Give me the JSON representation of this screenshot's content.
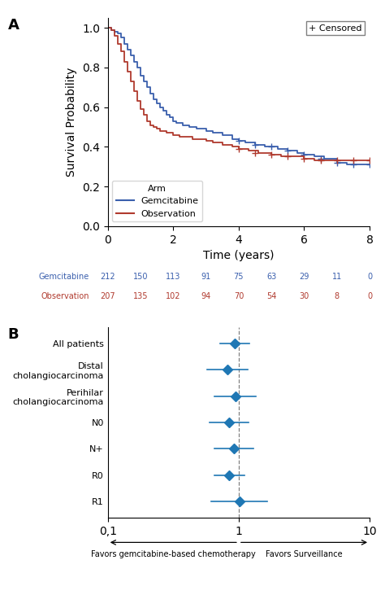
{
  "chart_data": [
    {
      "type": "step",
      "title": "A",
      "xlabel": "Time (years)",
      "ylabel": "Survival Probability",
      "xlim": [
        0,
        8
      ],
      "ylim": [
        0.0,
        1.05
      ],
      "xticks": [
        0,
        2,
        4,
        6,
        8
      ],
      "yticks": [
        {
          "value": 0.0,
          "label": "0.0"
        },
        0.2,
        0.4,
        0.6,
        0.8,
        {
          "value": 1.0,
          "label": "1.0"
        }
      ],
      "legend": "lower left",
      "legend_title": "Arm",
      "annotations": [
        "+ Censored"
      ],
      "series": [
        {
          "name": "Gemcitabine",
          "color": "#3A5FAD",
          "marker": "+",
          "x": [
            0.0,
            0.1,
            0.2,
            0.3,
            0.4,
            0.5,
            0.6,
            0.7,
            0.8,
            0.9,
            1.0,
            1.1,
            1.2,
            1.3,
            1.4,
            1.5,
            1.6,
            1.7,
            1.8,
            1.9,
            2.0,
            2.1,
            2.2,
            2.3,
            2.5,
            2.7,
            3.0,
            3.2,
            3.5,
            3.8,
            4.0,
            4.2,
            4.5,
            4.8,
            5.0,
            5.2,
            5.5,
            5.8,
            6.0,
            6.3,
            6.6,
            7.0,
            7.3,
            7.6,
            8.0
          ],
          "values": [
            1.0,
            0.99,
            0.98,
            0.97,
            0.95,
            0.92,
            0.89,
            0.86,
            0.83,
            0.8,
            0.76,
            0.73,
            0.7,
            0.67,
            0.64,
            0.62,
            0.6,
            0.58,
            0.56,
            0.55,
            0.53,
            0.52,
            0.52,
            0.51,
            0.5,
            0.49,
            0.48,
            0.47,
            0.46,
            0.44,
            0.43,
            0.42,
            0.41,
            0.4,
            0.4,
            0.39,
            0.38,
            0.37,
            0.36,
            0.35,
            0.34,
            0.32,
            0.31,
            0.31,
            0.31
          ],
          "censored_x": [
            4.0,
            4.5,
            5.0,
            5.5,
            6.0,
            6.5,
            7.0,
            7.5,
            8.0
          ],
          "censored_values": [
            0.43,
            0.41,
            0.4,
            0.38,
            0.36,
            0.34,
            0.32,
            0.31,
            0.31
          ]
        },
        {
          "name": "Observation",
          "color": "#B03A2E",
          "marker": "+",
          "x": [
            0.0,
            0.1,
            0.2,
            0.3,
            0.4,
            0.5,
            0.6,
            0.7,
            0.8,
            0.9,
            1.0,
            1.1,
            1.2,
            1.3,
            1.4,
            1.5,
            1.6,
            1.7,
            1.8,
            1.9,
            2.0,
            2.2,
            2.4,
            2.6,
            2.8,
            3.0,
            3.2,
            3.5,
            3.8,
            4.0,
            4.3,
            4.6,
            5.0,
            5.3,
            5.6,
            6.0,
            6.3,
            6.6,
            7.0,
            7.4,
            7.8,
            8.0
          ],
          "values": [
            1.0,
            0.99,
            0.96,
            0.92,
            0.88,
            0.83,
            0.78,
            0.73,
            0.68,
            0.63,
            0.59,
            0.56,
            0.53,
            0.51,
            0.5,
            0.49,
            0.48,
            0.48,
            0.47,
            0.47,
            0.46,
            0.45,
            0.45,
            0.44,
            0.44,
            0.43,
            0.42,
            0.41,
            0.4,
            0.39,
            0.38,
            0.37,
            0.36,
            0.35,
            0.35,
            0.34,
            0.33,
            0.33,
            0.33,
            0.33,
            0.33,
            0.33
          ],
          "censored_x": [
            4.0,
            4.5,
            5.0,
            5.5,
            6.0,
            6.5,
            7.0,
            7.5,
            8.0
          ],
          "censored_values": [
            0.39,
            0.37,
            0.36,
            0.35,
            0.34,
            0.33,
            0.33,
            0.33,
            0.33
          ]
        }
      ],
      "at_risk": {
        "x": [
          0,
          1,
          2,
          3,
          4,
          5,
          6,
          7,
          8
        ],
        "rows": [
          {
            "name": "Gemcitabine",
            "color": "#3A5FAD",
            "values": [
              212,
              150,
              113,
              91,
              75,
              63,
              29,
              11,
              0
            ]
          },
          {
            "name": "Observation",
            "color": "#B03A2E",
            "values": [
              207,
              135,
              102,
              94,
              70,
              54,
              30,
              8,
              0
            ]
          }
        ]
      }
    },
    {
      "type": "forest",
      "title": "B",
      "categories": [
        "All patients",
        "Distal\ncholangiocarcinoma",
        "Perihilar\ncholangiocarcinoma",
        "N0",
        "N+",
        "R0",
        "R1"
      ],
      "values": [
        0.93,
        0.82,
        0.94,
        0.84,
        0.92,
        0.84,
        1.01
      ],
      "ci_low": [
        0.72,
        0.57,
        0.65,
        0.6,
        0.65,
        0.65,
        0.62
      ],
      "ci_high": [
        1.2,
        1.17,
        1.35,
        1.19,
        1.29,
        1.1,
        1.65
      ],
      "log": "x",
      "xlim": [
        0.1,
        10
      ],
      "xticks": [
        {
          "value": 0.1,
          "label": "0,1"
        },
        1,
        10
      ],
      "reference_line": 1,
      "annotations": [
        "Favors gemcitabine-based chemotherapy",
        "Favors Surveillance"
      ]
    }
  ]
}
